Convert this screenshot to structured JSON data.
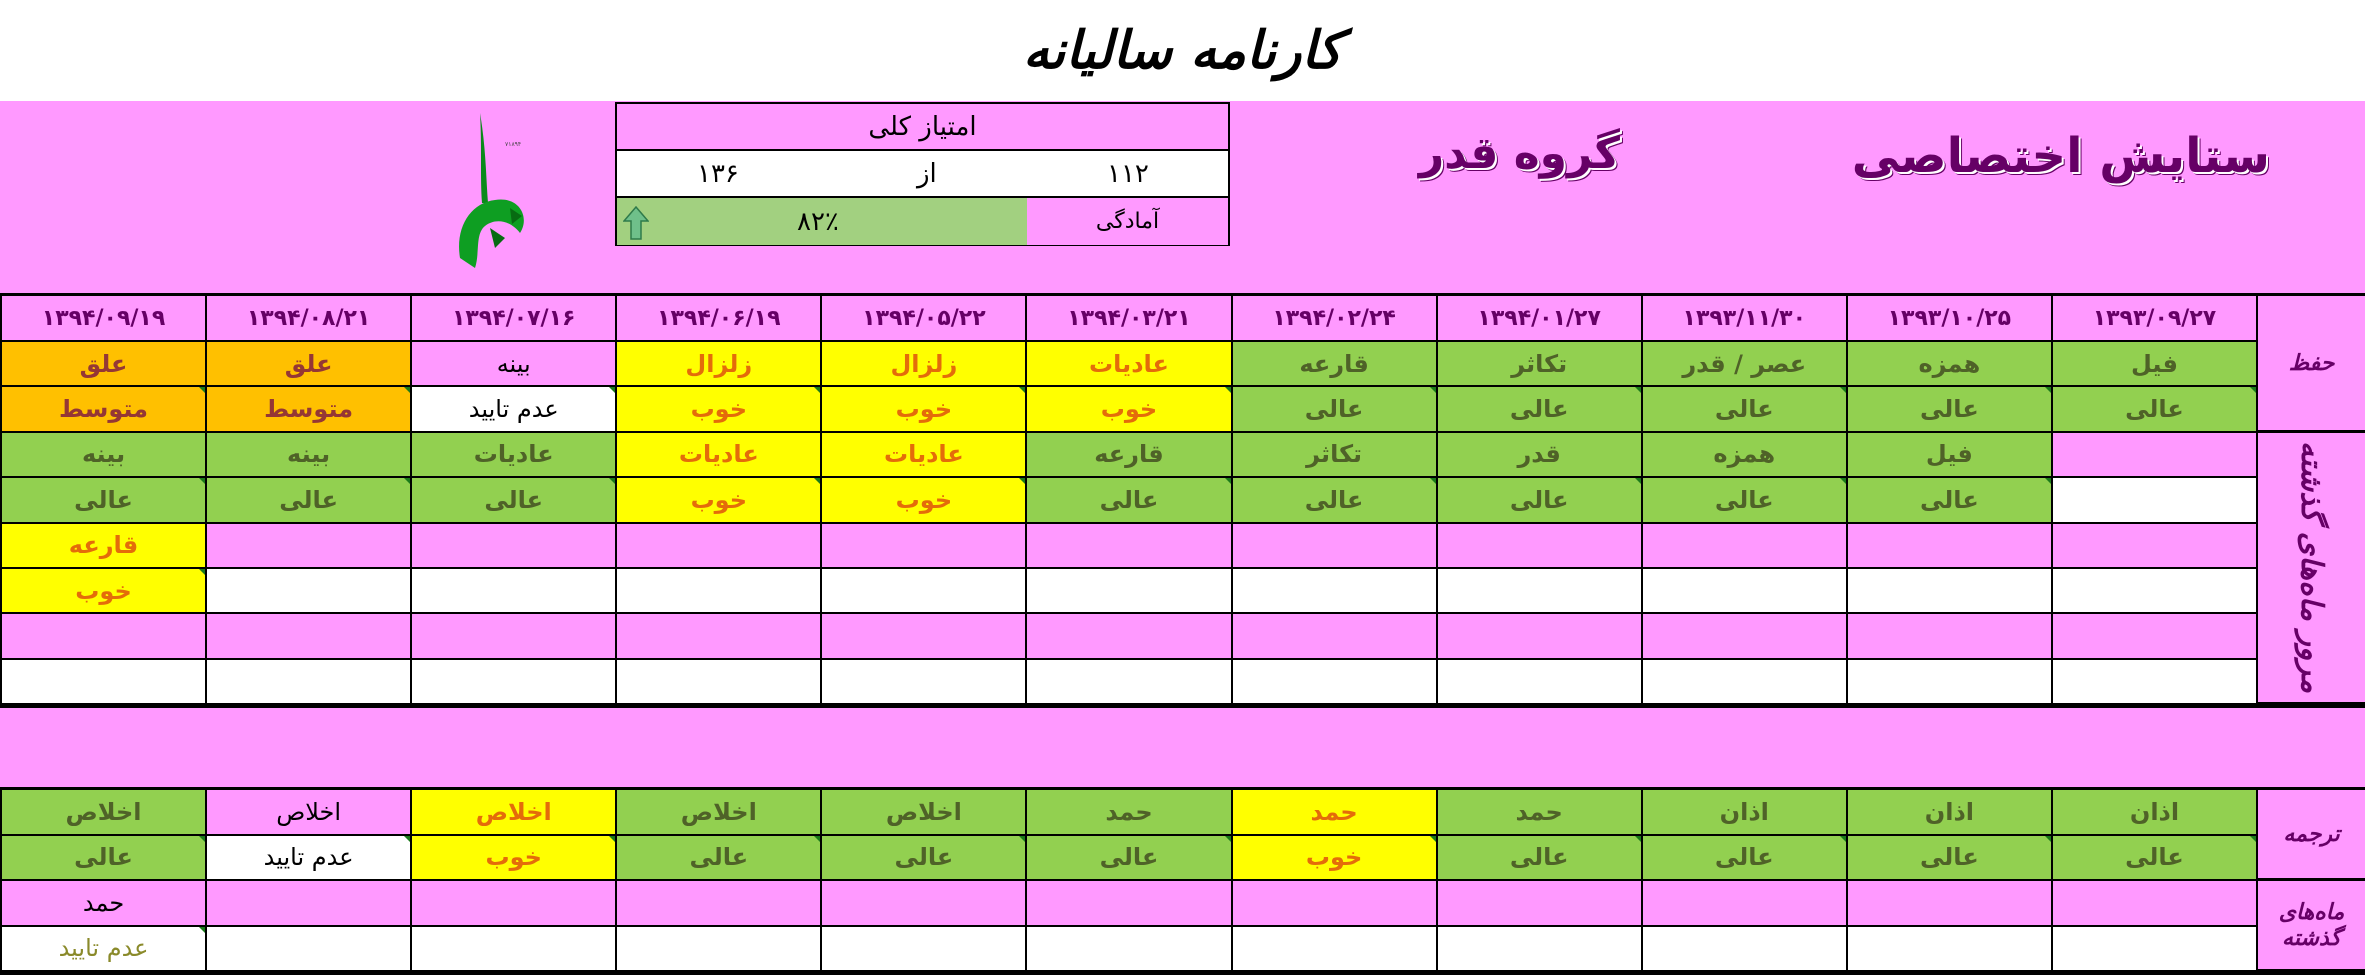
{
  "title": "کارنامه سالیانه",
  "header": {
    "program": "ستایش اختصاصی",
    "group": "گروه قدر"
  },
  "score": {
    "heading": "امتیاز کلی",
    "earned": "۱۱۲",
    "of": "از",
    "total": "۱۳۶",
    "readiness_label": "آمادگی",
    "readiness_value": "۸۲٪",
    "readiness_percent": 82,
    "trend_icon": "arrow-up-icon"
  },
  "colors": {
    "pink": "#ff99ff",
    "green": "#92d050",
    "yellow": "#ffff00",
    "orange": "#ffc000",
    "title_purple": "#660066"
  },
  "dates": [
    "۱۳۹۳/۰۹/۲۷",
    "۱۳۹۳/۱۰/۲۵",
    "۱۳۹۳/۱۱/۳۰",
    "۱۳۹۴/۰۱/۲۷",
    "۱۳۹۴/۰۲/۲۴",
    "۱۳۹۴/۰۳/۲۱",
    "۱۳۹۴/۰۵/۲۲",
    "۱۳۹۴/۰۶/۱۹",
    "۱۳۹۴/۰۷/۱۶",
    "۱۳۹۴/۰۸/۲۱",
    "۱۳۹۴/۰۹/۱۹"
  ],
  "sections": [
    {
      "label": "حفظ",
      "rows": [
        {
          "cells": [
            "فیل",
            "همزه",
            "عصر / قدر",
            "تکاثر",
            "قارعه",
            "عادیات",
            "زلزال",
            "زلزال",
            "بینه",
            "علق",
            "علق"
          ],
          "styles": [
            "g",
            "g",
            "g",
            "g",
            "g",
            "y",
            "y",
            "y",
            "p",
            "o",
            "o"
          ]
        },
        {
          "cells": [
            "عالی",
            "عالی",
            "عالی",
            "عالی",
            "عالی",
            "خوب",
            "خوب",
            "خوب",
            "عدم تایید",
            "متوسط",
            "متوسط"
          ],
          "styles": [
            "g",
            "g",
            "g",
            "g",
            "g",
            "y",
            "y",
            "y",
            "w",
            "o",
            "o"
          ]
        }
      ]
    },
    {
      "label": "مرور ماه‌های گذشته",
      "rows": [
        {
          "cells": [
            "",
            "فیل",
            "همزه",
            "قدر",
            "تکاثر",
            "قارعه",
            "عادیات",
            "عادیات",
            "عادیات",
            "بینه",
            "بینه"
          ],
          "styles": [
            "p",
            "g",
            "g",
            "g",
            "g",
            "g",
            "y",
            "y",
            "g",
            "g",
            "g"
          ]
        },
        {
          "cells": [
            "",
            "عالی",
            "عالی",
            "عالی",
            "عالی",
            "عالی",
            "خوب",
            "خوب",
            "عالی",
            "عالی",
            "عالی"
          ],
          "styles": [
            "w",
            "g",
            "g",
            "g",
            "g",
            "g",
            "y",
            "y",
            "g",
            "g",
            "g"
          ]
        },
        {
          "cells": [
            "",
            "",
            "",
            "",
            "",
            "",
            "",
            "",
            "",
            "",
            "قارعه"
          ],
          "styles": [
            "p",
            "p",
            "p",
            "p",
            "p",
            "p",
            "p",
            "p",
            "p",
            "p",
            "y"
          ]
        },
        {
          "cells": [
            "",
            "",
            "",
            "",
            "",
            "",
            "",
            "",
            "",
            "",
            "خوب"
          ],
          "styles": [
            "w",
            "w",
            "w",
            "w",
            "w",
            "w",
            "w",
            "w",
            "w",
            "w",
            "y"
          ]
        },
        {
          "cells": [
            "",
            "",
            "",
            "",
            "",
            "",
            "",
            "",
            "",
            "",
            ""
          ],
          "styles": [
            "p",
            "p",
            "p",
            "p",
            "p",
            "p",
            "p",
            "p",
            "p",
            "p",
            "p"
          ]
        },
        {
          "cells": [
            "",
            "",
            "",
            "",
            "",
            "",
            "",
            "",
            "",
            "",
            ""
          ],
          "styles": [
            "w",
            "w",
            "w",
            "w",
            "w",
            "w",
            "w",
            "w",
            "w",
            "w",
            "w"
          ]
        }
      ]
    },
    {
      "label": "ترجمه",
      "rows": [
        {
          "cells": [
            "اذان",
            "اذان",
            "اذان",
            "حمد",
            "حمد",
            "حمد",
            "اخلاص",
            "اخلاص",
            "اخلاص",
            "اخلاص",
            "اخلاص"
          ],
          "styles": [
            "g",
            "g",
            "g",
            "g",
            "y",
            "g",
            "g",
            "g",
            "y",
            "p",
            "g"
          ]
        },
        {
          "cells": [
            "عالی",
            "عالی",
            "عالی",
            "عالی",
            "خوب",
            "عالی",
            "عالی",
            "عالی",
            "خوب",
            "عدم تایید",
            "عالی"
          ],
          "styles": [
            "g",
            "g",
            "g",
            "g",
            "y",
            "g",
            "g",
            "g",
            "y",
            "w",
            "g"
          ]
        }
      ]
    },
    {
      "label": "ماه‌های گذشته",
      "rows": [
        {
          "cells": [
            "",
            "",
            "",
            "",
            "",
            "",
            "",
            "",
            "",
            "",
            "حمد"
          ],
          "styles": [
            "p",
            "p",
            "p",
            "p",
            "p",
            "p",
            "p",
            "p",
            "p",
            "p",
            "p"
          ]
        },
        {
          "cells": [
            "",
            "",
            "",
            "",
            "",
            "",
            "",
            "",
            "",
            "",
            "عدم تایید"
          ],
          "styles": [
            "w",
            "w",
            "w",
            "w",
            "w",
            "w",
            "w",
            "w",
            "w",
            "w",
            "wo"
          ]
        }
      ]
    }
  ]
}
